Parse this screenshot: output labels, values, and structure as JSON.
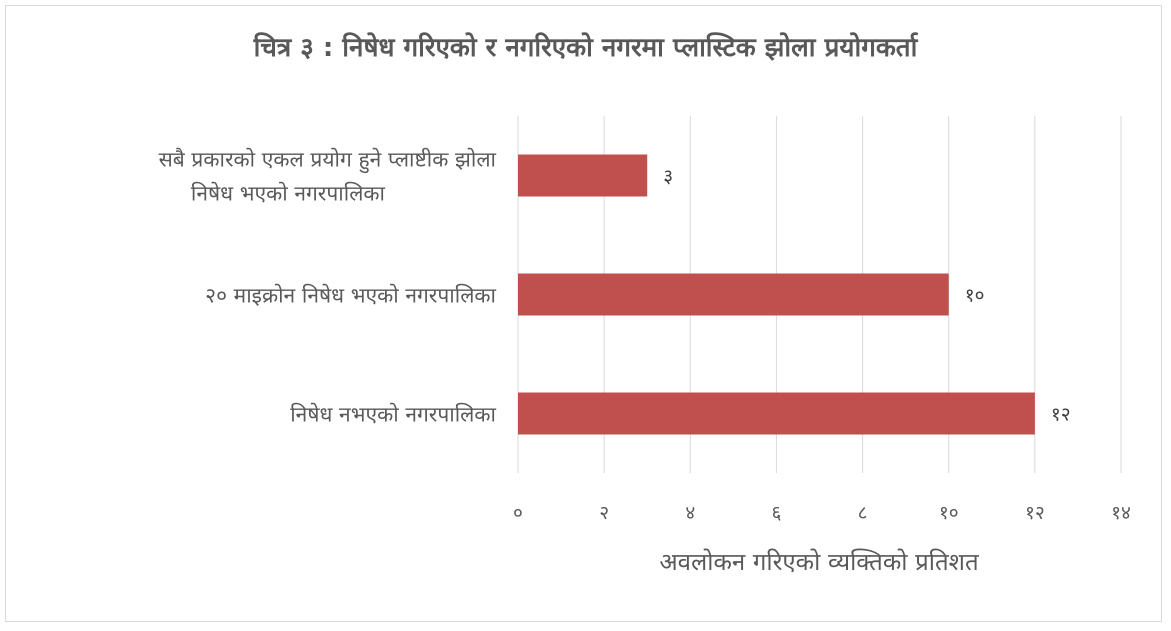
{
  "chart_data": {
    "type": "bar",
    "orientation": "horizontal",
    "title": "चित्र ३ : निषेध गरिएको र नगरिएको नगरमा प्लास्टिक झोला प्रयोगकर्ता",
    "xlabel": "अवलोकन गरिएको व्यक्तिको प्रतिशत",
    "ylabel": "",
    "categories": [
      [
        "सबै प्रकारको एकल प्रयोग हुने प्लाष्टीक झोला",
        "निषेध भएको नगरपालिका"
      ],
      [
        "२० माइक्रोन निषेध भएको नगरपालिका"
      ],
      [
        "निषेध नभएको नगरपालिका"
      ]
    ],
    "values": [
      3,
      10,
      12
    ],
    "value_labels": [
      "३",
      "१०",
      "१२"
    ],
    "xlim": [
      0,
      14
    ],
    "x_ticks": [
      0,
      2,
      4,
      6,
      8,
      10,
      12,
      14
    ],
    "x_tick_labels": [
      "०",
      "२",
      "४",
      "६",
      "८",
      "१०",
      "१२",
      "१४"
    ],
    "grid": true,
    "legend": "none",
    "colors": {
      "bar": "#c0504d",
      "grid": "#d9d9d9",
      "text": "#595959",
      "value_text": "#404040"
    }
  }
}
